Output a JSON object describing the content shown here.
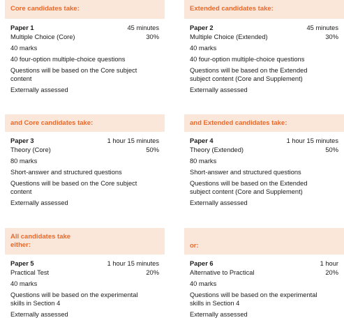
{
  "cards": [
    {
      "heading": "Core candidates take:",
      "paper": "Paper 1",
      "duration": "45 minutes",
      "component": "Multiple Choice (Core)",
      "weight": "30%",
      "marks": "40 marks",
      "question_type": "40 four-option multiple-choice questions",
      "content_line1": "Questions will be based on the Core subject",
      "content_line2": "content",
      "assessment": "Externally assessed"
    },
    {
      "heading": "Extended candidates take:",
      "paper": "Paper 2",
      "duration": "45 minutes",
      "component": "Multiple Choice (Extended)",
      "weight": "30%",
      "marks": "40 marks",
      "question_type": "40 four-option multiple-choice questions",
      "content_line1": "Questions will be based on the Extended",
      "content_line2": "subject content (Core and Supplement)",
      "assessment": "Externally assessed"
    },
    {
      "heading": "and Core candidates take:",
      "paper": "Paper 3",
      "duration": "1 hour 15 minutes",
      "component": "Theory (Core)",
      "weight": "50%",
      "marks": "80 marks",
      "question_type": "Short-answer and structured questions",
      "content_line1": "Questions will be based on the Core subject",
      "content_line2": "content",
      "assessment": "Externally assessed"
    },
    {
      "heading": "and Extended candidates take:",
      "paper": "Paper 4",
      "duration": "1 hour 15 minutes",
      "component": "Theory (Extended)",
      "weight": "50%",
      "marks": "80 marks",
      "question_type": "Short-answer and structured questions",
      "content_line1": "Questions will be based on the Extended",
      "content_line2": "subject content (Core and Supplement)",
      "assessment": "Externally assessed"
    },
    {
      "heading_line1": "All candidates take",
      "heading_line2": "either:",
      "paper": "Paper 5",
      "duration": "1 hour 15 minutes",
      "component": "Practical Test",
      "weight": "20%",
      "marks": "40 marks",
      "content_line1": "Questions will be based on the experimental",
      "content_line2": "skills in Section 4",
      "assessment": "Externally assessed"
    },
    {
      "heading": "or:",
      "paper": "Paper 6",
      "duration": "1 hour",
      "component": "Alternative to Practical",
      "weight": "20%",
      "marks": "40 marks",
      "content_line1": "Questions will be based on the experimental",
      "content_line2": "skills in Section 4",
      "assessment": "Externally assessed"
    }
  ]
}
